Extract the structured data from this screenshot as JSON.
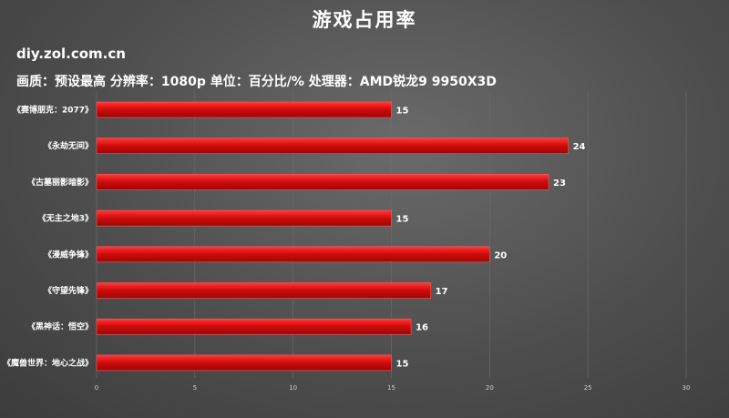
{
  "header": {
    "title": "游戏占用率",
    "site": "diy.zol.com.cn",
    "subtitle": "画质：预设最高    分辨率：1080p   单位：百分比/%    处理器：AMD锐龙9 9950X3D"
  },
  "colors": {
    "bar": "#d40c0c",
    "bar_edge": "#ff5a5a",
    "grid": "#6d6d6d"
  },
  "chart_data": {
    "type": "bar",
    "orientation": "horizontal",
    "categories": [
      "《赛博朋克：2077》",
      "《永劫无间》",
      "《古墓丽影暗影》",
      "《无主之地3》",
      "《漫威争锋》",
      "《守望先锋》",
      "《黑神话：悟空》",
      "《魔兽世界：地心之战》"
    ],
    "values": [
      15,
      24,
      23,
      15,
      20,
      17,
      16,
      15
    ],
    "xlim": [
      0,
      30
    ],
    "xticks": [
      0,
      5,
      10,
      15,
      20,
      25,
      30
    ],
    "grid": true,
    "data_labels": true
  }
}
